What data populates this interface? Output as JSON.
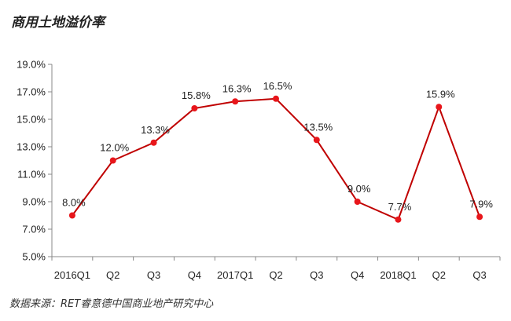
{
  "chart_data": {
    "type": "line",
    "title": "商用土地溢价率",
    "source": "数据来源：RET睿意德中国商业地产研究中心",
    "categories": [
      "2016Q1",
      "Q2",
      "Q3",
      "Q4",
      "2017Q1",
      "Q2",
      "Q3",
      "Q4",
      "2018Q1",
      "Q2",
      "Q3"
    ],
    "series": [
      {
        "values": [
          8.0,
          12.0,
          13.3,
          15.8,
          16.3,
          16.5,
          13.5,
          9.0,
          7.7,
          15.9,
          7.9
        ]
      }
    ],
    "data_labels": [
      "8.0%",
      "12.0%",
      "13.3%",
      "15.8%",
      "16.3%",
      "16.5%",
      "13.5%",
      "9.0%",
      "7.7%",
      "15.9%",
      "7.9%"
    ],
    "yticks": [
      "5.0%",
      "7.0%",
      "9.0%",
      "11.0%",
      "13.0%",
      "15.0%",
      "17.0%",
      "19.0%"
    ],
    "ylim": [
      5,
      19
    ],
    "grid": false,
    "legend": "none",
    "colors": {
      "line": "#c00000",
      "marker": "#e8161b",
      "axis": "#888888"
    }
  }
}
